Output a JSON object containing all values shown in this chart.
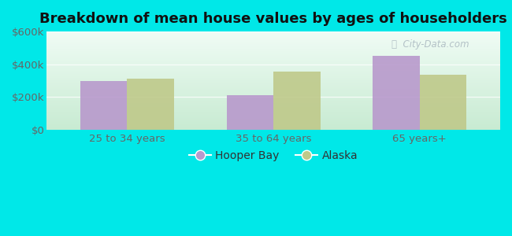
{
  "title": "Breakdown of mean house values by ages of householders",
  "categories": [
    "25 to 34 years",
    "35 to 64 years",
    "65 years+"
  ],
  "hooper_bay": [
    300000,
    210000,
    450000
  ],
  "alaska": [
    310000,
    355000,
    335000
  ],
  "hooper_bay_color": "#b899cc",
  "alaska_color": "#bfc98a",
  "background_outer": "#00e8e8",
  "background_inner_top": "#e8f8f0",
  "background_inner_bottom": "#d0eedd",
  "ylim": [
    0,
    600000
  ],
  "yticks": [
    0,
    200000,
    400000,
    600000
  ],
  "ytick_labels": [
    "$0",
    "$200k",
    "$400k",
    "$600k"
  ],
  "legend_hooper": "Hooper Bay",
  "legend_alaska": "Alaska",
  "bar_width": 0.32,
  "title_fontsize": 13,
  "tick_fontsize": 9.5,
  "legend_fontsize": 10,
  "watermark": "City-Data.com"
}
